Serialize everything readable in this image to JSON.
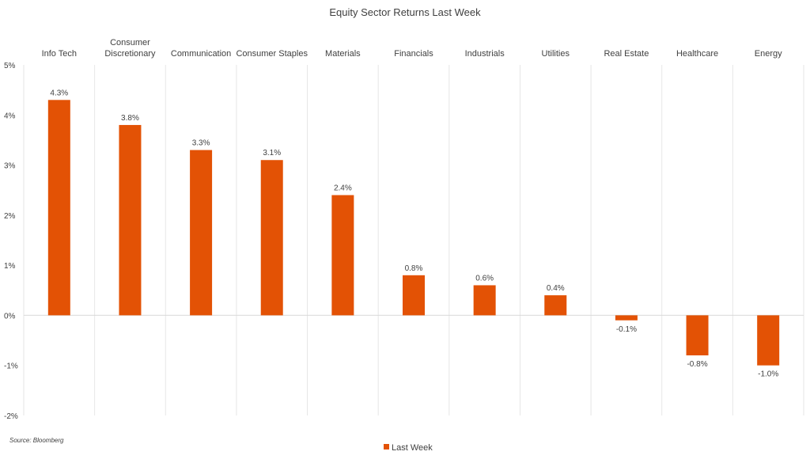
{
  "chart_data": {
    "type": "bar",
    "title": "Equity Sector Returns Last Week",
    "categories": [
      [
        "Info Tech"
      ],
      [
        "Consumer",
        "Discretionary"
      ],
      [
        "Communication"
      ],
      [
        "Consumer Staples"
      ],
      [
        "Materials"
      ],
      [
        "Financials"
      ],
      [
        "Industrials"
      ],
      [
        "Utilities"
      ],
      [
        "Real Estate"
      ],
      [
        "Healthcare"
      ],
      [
        "Energy"
      ]
    ],
    "series": [
      {
        "name": "Last Week",
        "values": [
          4.3,
          3.8,
          3.3,
          3.1,
          2.4,
          0.8,
          0.6,
          0.4,
          -0.1,
          -0.8,
          -1.0
        ],
        "data_labels": [
          "4.3%",
          "3.8%",
          "3.3%",
          "3.1%",
          "2.4%",
          "0.8%",
          "0.6%",
          "0.4%",
          "-0.1%",
          "-0.8%",
          "-1.0%"
        ]
      }
    ],
    "ylim": [
      -2,
      5
    ],
    "yticks": [
      5,
      4,
      3,
      2,
      1,
      0,
      -1,
      -2
    ],
    "ytick_labels": [
      "5%",
      "4%",
      "3%",
      "2%",
      "1%",
      "0%",
      "-1%",
      "-2%"
    ],
    "xlabel": "",
    "ylabel": "",
    "grid": "vertical category separators",
    "legend_position": "bottom",
    "colors": {
      "bar": "#E35205",
      "zero_line": "#D9D9D9",
      "grid": "#E6E6E6"
    }
  },
  "source_note": "Source: Bloomberg"
}
